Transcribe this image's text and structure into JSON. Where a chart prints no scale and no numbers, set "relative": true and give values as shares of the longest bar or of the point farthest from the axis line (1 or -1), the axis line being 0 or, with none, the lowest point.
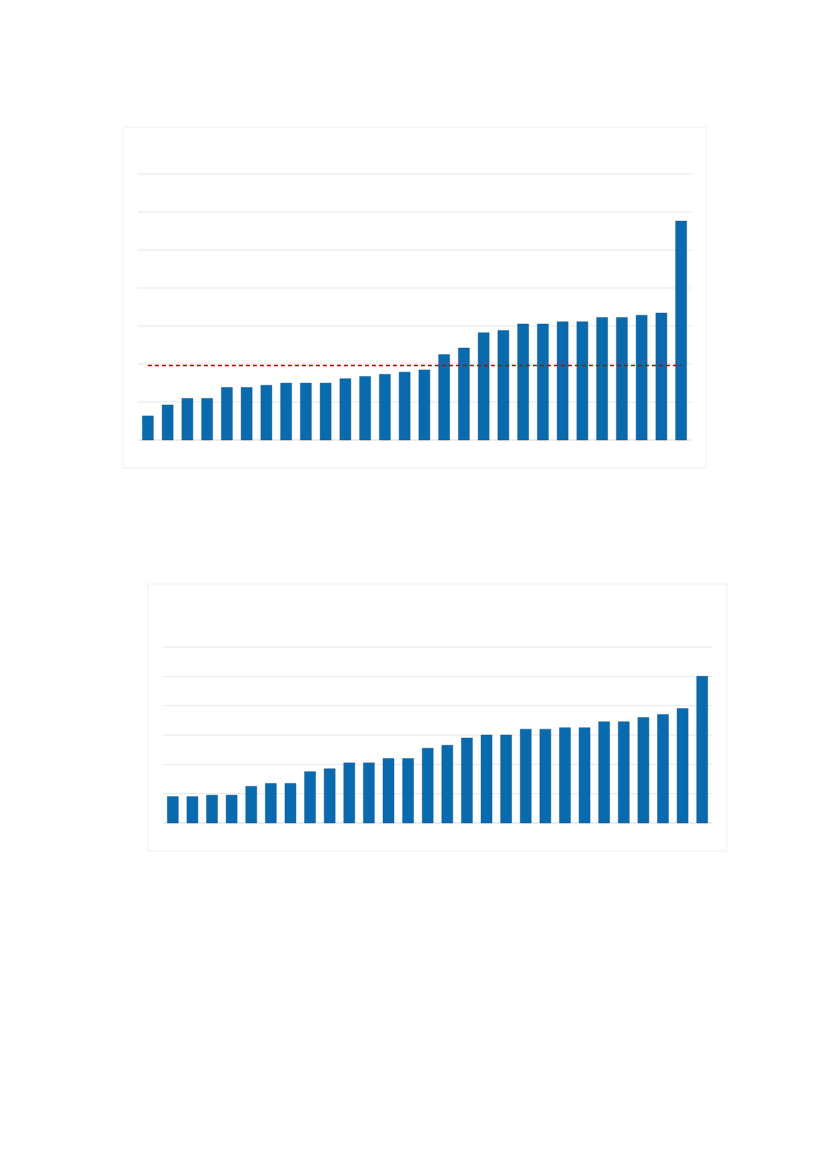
{
  "chart_data": [
    {
      "type": "bar",
      "relative": true,
      "grid": "y",
      "color": "#0a6aae",
      "categories": [
        null,
        null,
        null,
        null,
        null,
        null,
        null,
        null,
        null,
        null,
        null,
        null,
        null,
        null,
        null,
        null,
        null,
        null,
        null,
        null,
        null,
        null,
        null,
        null,
        null,
        null,
        null,
        null
      ],
      "values": [
        0.11,
        0.16,
        0.19,
        0.19,
        0.24,
        0.24,
        0.25,
        0.26,
        0.26,
        0.26,
        0.28,
        0.29,
        0.3,
        0.31,
        0.32,
        0.39,
        0.42,
        0.49,
        0.5,
        0.53,
        0.53,
        0.54,
        0.54,
        0.56,
        0.56,
        0.57,
        0.58,
        1
      ],
      "ref_lines": [
        {
          "axis": "y",
          "value": 0.34,
          "color": "#c00000",
          "line_style": "dashed"
        }
      ]
    },
    {
      "type": "bar",
      "relative": true,
      "grid": "y",
      "color": "#0a6aae",
      "categories": [
        null,
        null,
        null,
        null,
        null,
        null,
        null,
        null,
        null,
        null,
        null,
        null,
        null,
        null,
        null,
        null,
        null,
        null,
        null,
        null,
        null,
        null,
        null,
        null,
        null,
        null,
        null,
        null
      ],
      "values": [
        0.18,
        0.18,
        0.19,
        0.19,
        0.25,
        0.27,
        0.27,
        0.35,
        0.37,
        0.41,
        0.41,
        0.44,
        0.44,
        0.51,
        0.53,
        0.58,
        0.6,
        0.6,
        0.64,
        0.64,
        0.65,
        0.65,
        0.69,
        0.69,
        0.72,
        0.74,
        0.78,
        1
      ]
    }
  ]
}
